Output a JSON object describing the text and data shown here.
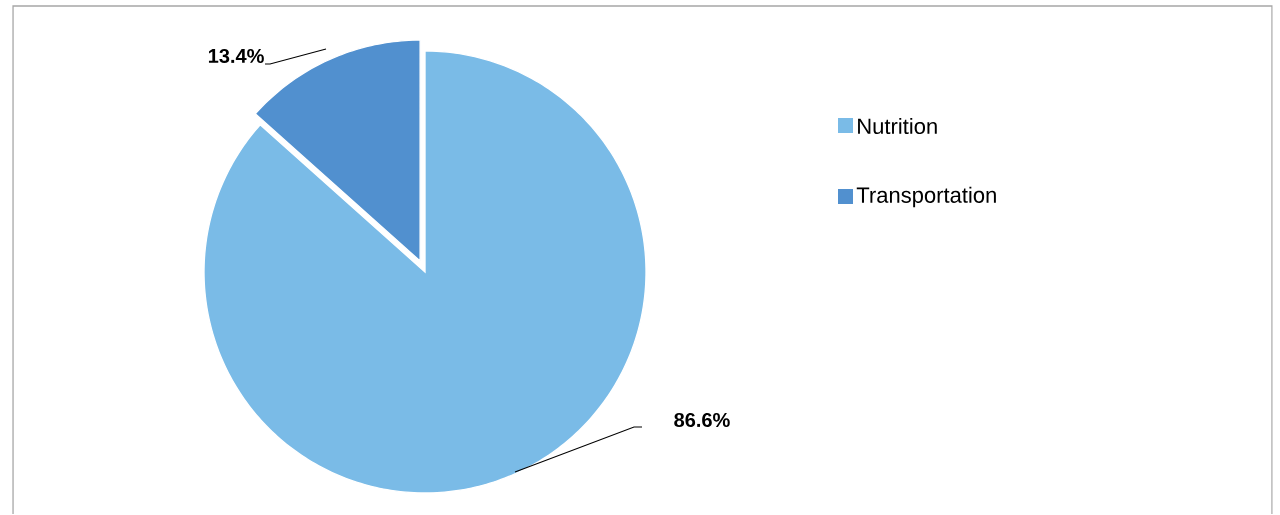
{
  "chart_data": {
    "type": "pie",
    "categories": [
      "Nutrition",
      "Transportation"
    ],
    "values": [
      86.6,
      13.4
    ],
    "colors": [
      "#7abbe7",
      "#5190cf"
    ],
    "value_labels": [
      "86.6%",
      "13.4%"
    ],
    "legend": "right"
  }
}
